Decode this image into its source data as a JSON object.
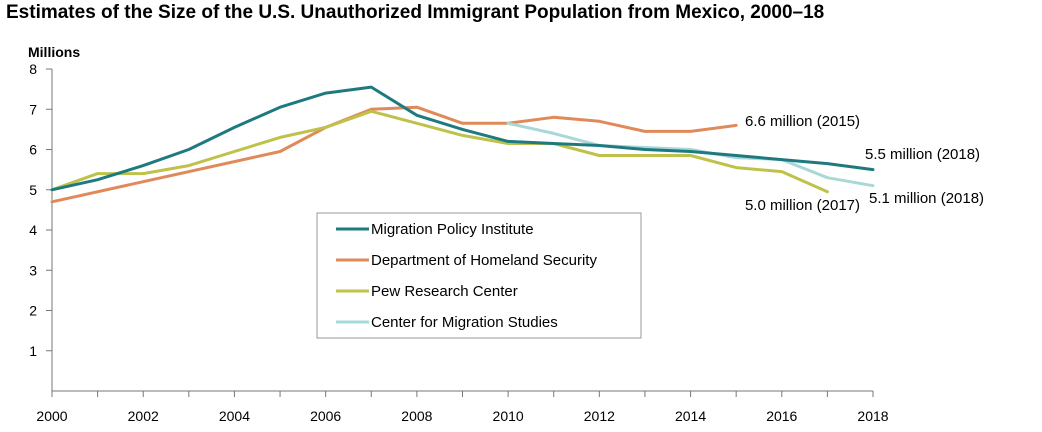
{
  "chart_data": {
    "type": "line",
    "title": "Estimates of the Size of the U.S. Unauthorized Immigrant Population from Mexico, 2000–18",
    "ylabel": "Millions",
    "xlabel": "",
    "xlim": [
      2000,
      2018
    ],
    "ylim": [
      0,
      8
    ],
    "x_ticks": [
      "2000",
      "2002",
      "2004",
      "2006",
      "2008",
      "2010",
      "2012",
      "2014",
      "2016",
      "2018"
    ],
    "y_ticks": [
      "1",
      "2",
      "3",
      "4",
      "5",
      "6",
      "7",
      "8"
    ],
    "grid": false,
    "legend_position": "center",
    "series": [
      {
        "name": "Migration Policy Institute",
        "color": "#1f7a80",
        "x": [
          2000,
          2001,
          2002,
          2003,
          2004,
          2005,
          2006,
          2007,
          2008,
          2009,
          2010,
          2011,
          2012,
          2013,
          2014,
          2015,
          2016,
          2017,
          2018
        ],
        "values": [
          5.0,
          5.25,
          5.6,
          6.0,
          6.55,
          7.05,
          7.4,
          7.55,
          6.85,
          6.5,
          6.2,
          6.15,
          6.1,
          6.0,
          5.95,
          5.85,
          5.75,
          5.65,
          5.5
        ]
      },
      {
        "name": "Department of Homeland Security",
        "color": "#e08a5a",
        "x": [
          2000,
          2005,
          2006,
          2007,
          2008,
          2009,
          2010,
          2011,
          2012,
          2013,
          2014,
          2015
        ],
        "values": [
          4.7,
          5.95,
          6.55,
          7.0,
          7.05,
          6.65,
          6.65,
          6.8,
          6.7,
          6.45,
          6.45,
          6.6
        ]
      },
      {
        "name": "Pew Research Center",
        "color": "#bfc24a",
        "x": [
          2000,
          2001,
          2002,
          2003,
          2004,
          2005,
          2006,
          2007,
          2008,
          2009,
          2010,
          2011,
          2012,
          2013,
          2014,
          2015,
          2016,
          2017
        ],
        "values": [
          5.0,
          5.4,
          5.4,
          5.6,
          5.95,
          6.3,
          6.55,
          6.95,
          6.65,
          6.35,
          6.15,
          6.15,
          5.85,
          5.85,
          5.85,
          5.55,
          5.45,
          4.95
        ]
      },
      {
        "name": "Center for Migration Studies",
        "color": "#a8d8d8",
        "x": [
          2010,
          2011,
          2012,
          2013,
          2014,
          2015,
          2016,
          2017,
          2018
        ],
        "values": [
          6.65,
          6.4,
          6.1,
          6.05,
          6.0,
          5.8,
          5.75,
          5.3,
          5.1
        ]
      }
    ],
    "annotations": [
      {
        "text": "6.6 million (2015)",
        "series": "Department of Homeland Security"
      },
      {
        "text": "5.5 million (2018)",
        "series": "Migration Policy Institute"
      },
      {
        "text": "5.0 million (2017)",
        "series": "Pew Research Center"
      },
      {
        "text": "5.1 million (2018)",
        "series": "Center for Migration Studies"
      }
    ]
  }
}
